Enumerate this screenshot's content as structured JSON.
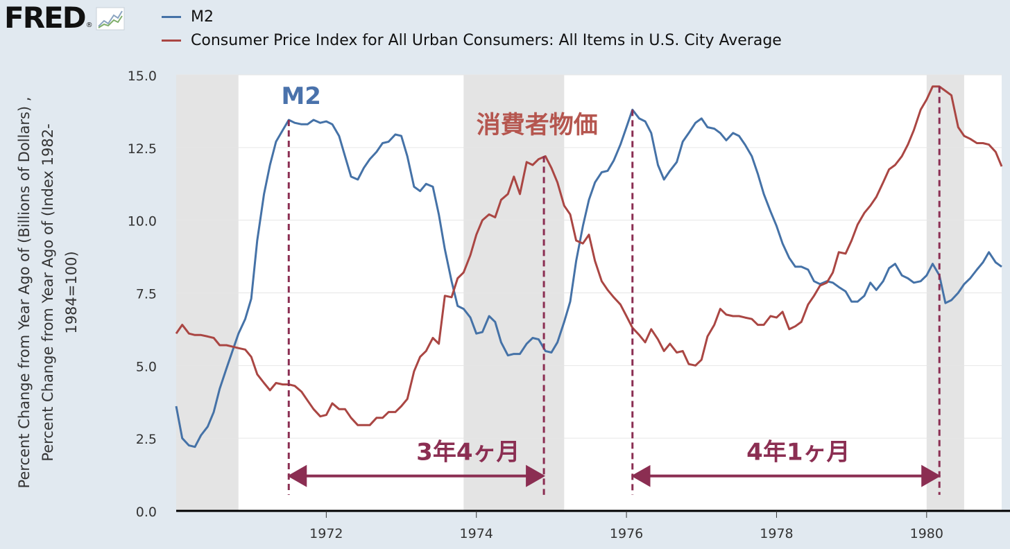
{
  "header": {
    "logo_text": "FRED",
    "logo_mark": "®"
  },
  "legend": [
    {
      "label": "M2",
      "color": "#4572a7"
    },
    {
      "label": "Consumer Price Index for All Urban Consumers: All Items in U.S. City Average",
      "color": "#aa4643"
    }
  ],
  "chart_data": {
    "type": "line",
    "ylabel_lines": [
      "Percent Change from Year Ago of (Billions of Dollars) ,",
      "Percent Change from Year Ago of (Index 1982-",
      "1984=100)"
    ],
    "xlim": [
      1970.0,
      1981.0
    ],
    "ylim": [
      0,
      15
    ],
    "x_ticks": [
      1972,
      1974,
      1976,
      1978,
      1980
    ],
    "y_ticks": [
      "0.0",
      "2.5",
      "5.0",
      "7.5",
      "10.0",
      "12.5",
      "15.0"
    ],
    "grid": true,
    "recessions": [
      [
        1970.0,
        1970.83
      ],
      [
        1973.83,
        1975.17
      ],
      [
        1980.0,
        1980.5
      ]
    ],
    "series": [
      {
        "name": "M2",
        "color": "#4572a7",
        "points": [
          [
            1970.0,
            3.6
          ],
          [
            1970.08,
            2.5
          ],
          [
            1970.17,
            2.25
          ],
          [
            1970.25,
            2.2
          ],
          [
            1970.33,
            2.6
          ],
          [
            1970.42,
            2.9
          ],
          [
            1970.5,
            3.4
          ],
          [
            1970.58,
            4.2
          ],
          [
            1970.67,
            4.9
          ],
          [
            1970.75,
            5.5
          ],
          [
            1970.83,
            6.1
          ],
          [
            1970.92,
            6.6
          ],
          [
            1971.0,
            7.3
          ],
          [
            1971.08,
            9.3
          ],
          [
            1971.17,
            10.9
          ],
          [
            1971.25,
            11.9
          ],
          [
            1971.33,
            12.7
          ],
          [
            1971.42,
            13.1
          ],
          [
            1971.5,
            13.45
          ],
          [
            1971.58,
            13.35
          ],
          [
            1971.67,
            13.3
          ],
          [
            1971.75,
            13.3
          ],
          [
            1971.83,
            13.45
          ],
          [
            1971.92,
            13.35
          ],
          [
            1972.0,
            13.4
          ],
          [
            1972.08,
            13.3
          ],
          [
            1972.17,
            12.9
          ],
          [
            1972.25,
            12.2
          ],
          [
            1972.33,
            11.5
          ],
          [
            1972.42,
            11.4
          ],
          [
            1972.5,
            11.8
          ],
          [
            1972.58,
            12.1
          ],
          [
            1972.67,
            12.35
          ],
          [
            1972.75,
            12.65
          ],
          [
            1972.83,
            12.7
          ],
          [
            1972.92,
            12.95
          ],
          [
            1973.0,
            12.9
          ],
          [
            1973.08,
            12.2
          ],
          [
            1973.17,
            11.15
          ],
          [
            1973.25,
            11.0
          ],
          [
            1973.33,
            11.25
          ],
          [
            1973.42,
            11.15
          ],
          [
            1973.5,
            10.2
          ],
          [
            1973.58,
            9.0
          ],
          [
            1973.67,
            7.9
          ],
          [
            1973.75,
            7.05
          ],
          [
            1973.83,
            6.95
          ],
          [
            1973.92,
            6.65
          ],
          [
            1974.0,
            6.1
          ],
          [
            1974.08,
            6.15
          ],
          [
            1974.17,
            6.7
          ],
          [
            1974.25,
            6.5
          ],
          [
            1974.33,
            5.8
          ],
          [
            1974.42,
            5.35
          ],
          [
            1974.5,
            5.4
          ],
          [
            1974.58,
            5.4
          ],
          [
            1974.67,
            5.75
          ],
          [
            1974.75,
            5.95
          ],
          [
            1974.83,
            5.9
          ],
          [
            1974.92,
            5.5
          ],
          [
            1975.0,
            5.45
          ],
          [
            1975.08,
            5.8
          ],
          [
            1975.17,
            6.5
          ],
          [
            1975.25,
            7.2
          ],
          [
            1975.33,
            8.6
          ],
          [
            1975.42,
            9.8
          ],
          [
            1975.5,
            10.7
          ],
          [
            1975.58,
            11.3
          ],
          [
            1975.67,
            11.65
          ],
          [
            1975.75,
            11.7
          ],
          [
            1975.83,
            12.05
          ],
          [
            1975.92,
            12.6
          ],
          [
            1976.0,
            13.2
          ],
          [
            1976.08,
            13.8
          ],
          [
            1976.17,
            13.5
          ],
          [
            1976.25,
            13.4
          ],
          [
            1976.33,
            13.0
          ],
          [
            1976.42,
            11.9
          ],
          [
            1976.5,
            11.4
          ],
          [
            1976.58,
            11.7
          ],
          [
            1976.67,
            12.0
          ],
          [
            1976.75,
            12.7
          ],
          [
            1976.83,
            13.0
          ],
          [
            1976.92,
            13.35
          ],
          [
            1977.0,
            13.5
          ],
          [
            1977.08,
            13.2
          ],
          [
            1977.17,
            13.15
          ],
          [
            1977.25,
            13.0
          ],
          [
            1977.33,
            12.75
          ],
          [
            1977.42,
            13.0
          ],
          [
            1977.5,
            12.9
          ],
          [
            1977.58,
            12.6
          ],
          [
            1977.67,
            12.2
          ],
          [
            1977.75,
            11.6
          ],
          [
            1977.83,
            10.9
          ],
          [
            1977.92,
            10.3
          ],
          [
            1978.0,
            9.8
          ],
          [
            1978.08,
            9.2
          ],
          [
            1978.17,
            8.7
          ],
          [
            1978.25,
            8.4
          ],
          [
            1978.33,
            8.4
          ],
          [
            1978.42,
            8.3
          ],
          [
            1978.5,
            7.9
          ],
          [
            1978.58,
            7.8
          ],
          [
            1978.67,
            7.9
          ],
          [
            1978.75,
            7.85
          ],
          [
            1978.83,
            7.7
          ],
          [
            1978.92,
            7.55
          ],
          [
            1979.0,
            7.2
          ],
          [
            1979.08,
            7.2
          ],
          [
            1979.17,
            7.4
          ],
          [
            1979.25,
            7.85
          ],
          [
            1979.33,
            7.6
          ],
          [
            1979.42,
            7.9
          ],
          [
            1979.5,
            8.35
          ],
          [
            1979.58,
            8.5
          ],
          [
            1979.67,
            8.1
          ],
          [
            1979.75,
            8.0
          ],
          [
            1979.83,
            7.85
          ],
          [
            1979.92,
            7.9
          ],
          [
            1980.0,
            8.1
          ],
          [
            1980.08,
            8.5
          ],
          [
            1980.17,
            8.1
          ],
          [
            1980.25,
            7.15
          ],
          [
            1980.33,
            7.25
          ],
          [
            1980.42,
            7.5
          ],
          [
            1980.5,
            7.8
          ],
          [
            1980.58,
            8.0
          ],
          [
            1980.67,
            8.3
          ],
          [
            1980.75,
            8.55
          ],
          [
            1980.83,
            8.9
          ],
          [
            1980.92,
            8.55
          ],
          [
            1981.0,
            8.4
          ]
        ]
      },
      {
        "name": "Consumer Price Index for All Urban Consumers: All Items in U.S. City Average",
        "color": "#aa4643",
        "points": [
          [
            1970.0,
            6.1
          ],
          [
            1970.08,
            6.4
          ],
          [
            1970.17,
            6.1
          ],
          [
            1970.25,
            6.05
          ],
          [
            1970.33,
            6.05
          ],
          [
            1970.42,
            6.0
          ],
          [
            1970.5,
            5.95
          ],
          [
            1970.58,
            5.7
          ],
          [
            1970.67,
            5.7
          ],
          [
            1970.75,
            5.65
          ],
          [
            1970.83,
            5.6
          ],
          [
            1970.92,
            5.55
          ],
          [
            1971.0,
            5.3
          ],
          [
            1971.08,
            4.7
          ],
          [
            1971.17,
            4.4
          ],
          [
            1971.25,
            4.15
          ],
          [
            1971.33,
            4.4
          ],
          [
            1971.42,
            4.35
          ],
          [
            1971.5,
            4.35
          ],
          [
            1971.58,
            4.3
          ],
          [
            1971.67,
            4.1
          ],
          [
            1971.75,
            3.8
          ],
          [
            1971.83,
            3.5
          ],
          [
            1971.92,
            3.25
          ],
          [
            1972.0,
            3.3
          ],
          [
            1972.08,
            3.7
          ],
          [
            1972.17,
            3.5
          ],
          [
            1972.25,
            3.5
          ],
          [
            1972.33,
            3.2
          ],
          [
            1972.42,
            2.95
          ],
          [
            1972.5,
            2.95
          ],
          [
            1972.58,
            2.95
          ],
          [
            1972.67,
            3.2
          ],
          [
            1972.75,
            3.2
          ],
          [
            1972.83,
            3.4
          ],
          [
            1972.92,
            3.4
          ],
          [
            1973.0,
            3.6
          ],
          [
            1973.08,
            3.85
          ],
          [
            1973.17,
            4.8
          ],
          [
            1973.25,
            5.3
          ],
          [
            1973.33,
            5.5
          ],
          [
            1973.42,
            5.95
          ],
          [
            1973.5,
            5.75
          ],
          [
            1973.58,
            7.4
          ],
          [
            1973.67,
            7.35
          ],
          [
            1973.75,
            8.0
          ],
          [
            1973.83,
            8.2
          ],
          [
            1973.92,
            8.8
          ],
          [
            1974.0,
            9.5
          ],
          [
            1974.08,
            10.0
          ],
          [
            1974.17,
            10.2
          ],
          [
            1974.25,
            10.1
          ],
          [
            1974.33,
            10.7
          ],
          [
            1974.42,
            10.9
          ],
          [
            1974.5,
            11.5
          ],
          [
            1974.58,
            10.9
          ],
          [
            1974.67,
            12.0
          ],
          [
            1974.75,
            11.9
          ],
          [
            1974.83,
            12.1
          ],
          [
            1974.92,
            12.2
          ],
          [
            1975.0,
            11.8
          ],
          [
            1975.08,
            11.3
          ],
          [
            1975.17,
            10.5
          ],
          [
            1975.25,
            10.2
          ],
          [
            1975.33,
            9.3
          ],
          [
            1975.42,
            9.2
          ],
          [
            1975.5,
            9.5
          ],
          [
            1975.58,
            8.6
          ],
          [
            1975.67,
            7.9
          ],
          [
            1975.75,
            7.6
          ],
          [
            1975.83,
            7.35
          ],
          [
            1975.92,
            7.1
          ],
          [
            1976.0,
            6.7
          ],
          [
            1976.08,
            6.3
          ],
          [
            1976.17,
            6.05
          ],
          [
            1976.25,
            5.8
          ],
          [
            1976.33,
            6.25
          ],
          [
            1976.42,
            5.9
          ],
          [
            1976.5,
            5.5
          ],
          [
            1976.58,
            5.75
          ],
          [
            1976.67,
            5.45
          ],
          [
            1976.75,
            5.5
          ],
          [
            1976.83,
            5.05
          ],
          [
            1976.92,
            5.0
          ],
          [
            1977.0,
            5.2
          ],
          [
            1977.08,
            6.0
          ],
          [
            1977.17,
            6.4
          ],
          [
            1977.25,
            6.95
          ],
          [
            1977.33,
            6.75
          ],
          [
            1977.42,
            6.7
          ],
          [
            1977.5,
            6.7
          ],
          [
            1977.58,
            6.65
          ],
          [
            1977.67,
            6.6
          ],
          [
            1977.75,
            6.4
          ],
          [
            1977.83,
            6.4
          ],
          [
            1977.92,
            6.7
          ],
          [
            1978.0,
            6.65
          ],
          [
            1978.08,
            6.85
          ],
          [
            1978.17,
            6.25
          ],
          [
            1978.25,
            6.35
          ],
          [
            1978.33,
            6.5
          ],
          [
            1978.42,
            7.1
          ],
          [
            1978.5,
            7.4
          ],
          [
            1978.58,
            7.75
          ],
          [
            1978.67,
            7.85
          ],
          [
            1978.75,
            8.2
          ],
          [
            1978.83,
            8.9
          ],
          [
            1978.92,
            8.85
          ],
          [
            1979.0,
            9.3
          ],
          [
            1979.08,
            9.85
          ],
          [
            1979.17,
            10.25
          ],
          [
            1979.25,
            10.5
          ],
          [
            1979.33,
            10.8
          ],
          [
            1979.42,
            11.3
          ],
          [
            1979.5,
            11.75
          ],
          [
            1979.58,
            11.9
          ],
          [
            1979.67,
            12.2
          ],
          [
            1979.75,
            12.6
          ],
          [
            1979.83,
            13.1
          ],
          [
            1979.92,
            13.8
          ],
          [
            1980.0,
            14.15
          ],
          [
            1980.08,
            14.6
          ],
          [
            1980.17,
            14.6
          ],
          [
            1980.25,
            14.45
          ],
          [
            1980.33,
            14.3
          ],
          [
            1980.42,
            13.2
          ],
          [
            1980.5,
            12.9
          ],
          [
            1980.58,
            12.8
          ],
          [
            1980.67,
            12.65
          ],
          [
            1980.75,
            12.65
          ],
          [
            1980.83,
            12.6
          ],
          [
            1980.92,
            12.35
          ],
          [
            1981.0,
            11.85
          ]
        ]
      }
    ],
    "annotations": [
      {
        "text": "M2",
        "color": "#4a72ab",
        "at": [
          1971.4,
          14.0
        ]
      },
      {
        "text": "消費者物価",
        "color": "#b5564f",
        "at": [
          1974.0,
          13.0
        ]
      },
      {
        "text": "3年4ヶ月",
        "color": "#8b2e52",
        "at": [
          1973.2,
          1.75
        ]
      },
      {
        "text": "4年1ヶ月",
        "color": "#8b2e52",
        "at": [
          1977.6,
          1.75
        ]
      }
    ],
    "vlines": [
      {
        "x": 1971.5,
        "y": 13.45
      },
      {
        "x": 1974.9,
        "y": 12.2
      },
      {
        "x": 1976.08,
        "y": 13.8
      },
      {
        "x": 1980.17,
        "y": 14.6
      }
    ],
    "spans": [
      {
        "from": 1971.5,
        "to": 1974.9,
        "y": 1.2
      },
      {
        "from": 1976.08,
        "to": 1980.17,
        "y": 1.2
      }
    ]
  }
}
